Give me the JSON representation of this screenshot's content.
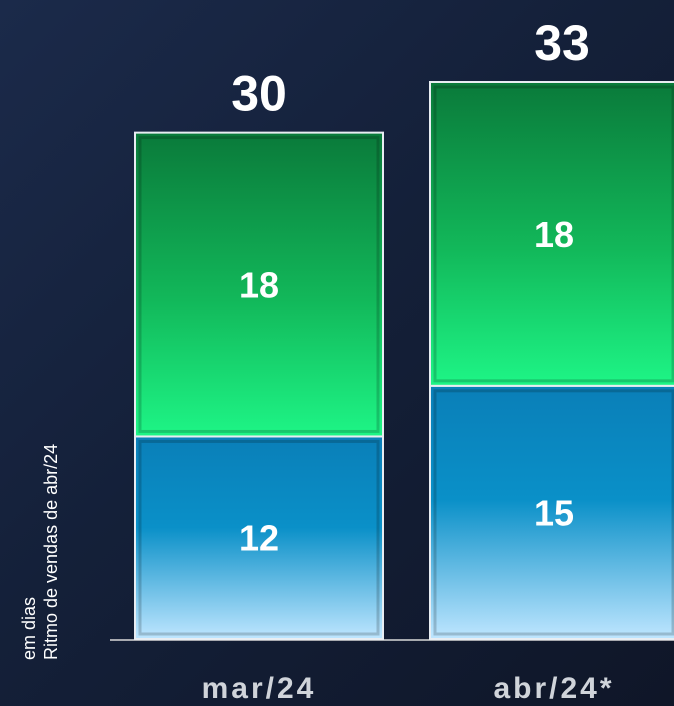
{
  "chart_data": {
    "type": "bar",
    "stacked": true,
    "categories": [
      "mar/24",
      "abr/24*"
    ],
    "series": [
      {
        "values": [
          12,
          15
        ],
        "color": "#0a8fc6"
      },
      {
        "values": [
          18,
          18
        ],
        "color": "#12c860"
      }
    ],
    "totals": [
      "30",
      "33"
    ],
    "segment_labels": [
      [
        "12",
        "18"
      ],
      [
        "15",
        "18"
      ]
    ],
    "ylabel_lines": [
      "em dias",
      "Ritmo de vendas de abr/24"
    ],
    "ylim": [
      0,
      33
    ]
  }
}
